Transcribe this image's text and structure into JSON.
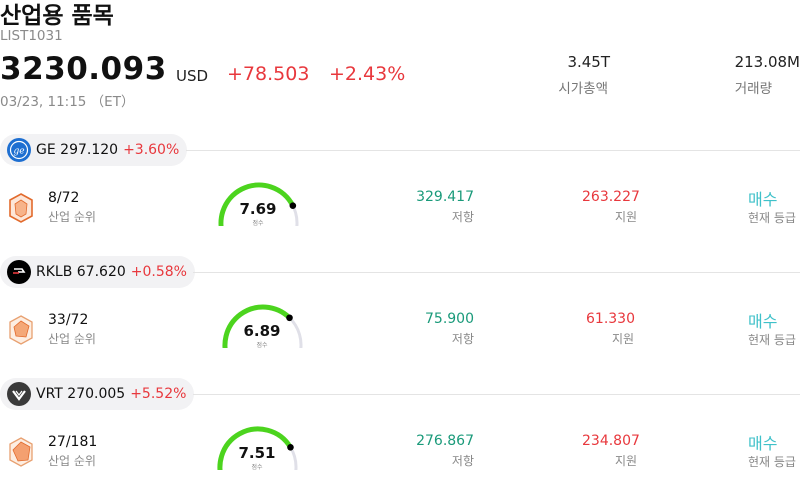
{
  "header": {
    "title": "산업용 품목",
    "code": "LIST1031",
    "price": "3230.093",
    "currency": "USD",
    "change": "+78.503",
    "change_pct": "+2.43%",
    "timestamp": "03/23, 11:15 （ET）",
    "market_cap_value": "3.45T",
    "market_cap_label": "시가총액",
    "volume_value": "213.08M",
    "volume_label": "거래량"
  },
  "colors": {
    "up": "#e8383d",
    "resistance": "#1a9a7a",
    "signal": "#3fc1c9",
    "gauge_active": "#4cd41e",
    "gauge_track": "#e0e0e8"
  },
  "stocks": [
    {
      "ticker": "GE",
      "price": "297.120",
      "change_pct": "+3.60%",
      "logo_icon": "ge-logo-icon",
      "rank": "8/72",
      "rank_label": "산업 순위",
      "score": "7.69",
      "score_value": 7.69,
      "score_label": "점수",
      "resistance": "329.417",
      "resistance_label": "저항",
      "support": "263.227",
      "support_label": "지원",
      "signal": "매수",
      "signal_label": "현재 등급"
    },
    {
      "ticker": "RKLB",
      "price": "67.620",
      "change_pct": "+0.58%",
      "logo_icon": "rocket-lab-logo-icon",
      "rank": "33/72",
      "rank_label": "산업 순위",
      "score": "6.89",
      "score_value": 6.89,
      "score_label": "점수",
      "resistance": "75.900",
      "resistance_label": "저항",
      "support": "61.330",
      "support_label": "지원",
      "signal": "매수",
      "signal_label": "현재 등급"
    },
    {
      "ticker": "VRT",
      "price": "270.005",
      "change_pct": "+5.52%",
      "logo_icon": "vertiv-logo-icon",
      "rank": "27/181",
      "rank_label": "산업 순위",
      "score": "7.51",
      "score_value": 7.51,
      "score_label": "점수",
      "resistance": "276.867",
      "resistance_label": "저항",
      "support": "234.807",
      "support_label": "지원",
      "signal": "매수",
      "signal_label": "현재 등급"
    }
  ]
}
